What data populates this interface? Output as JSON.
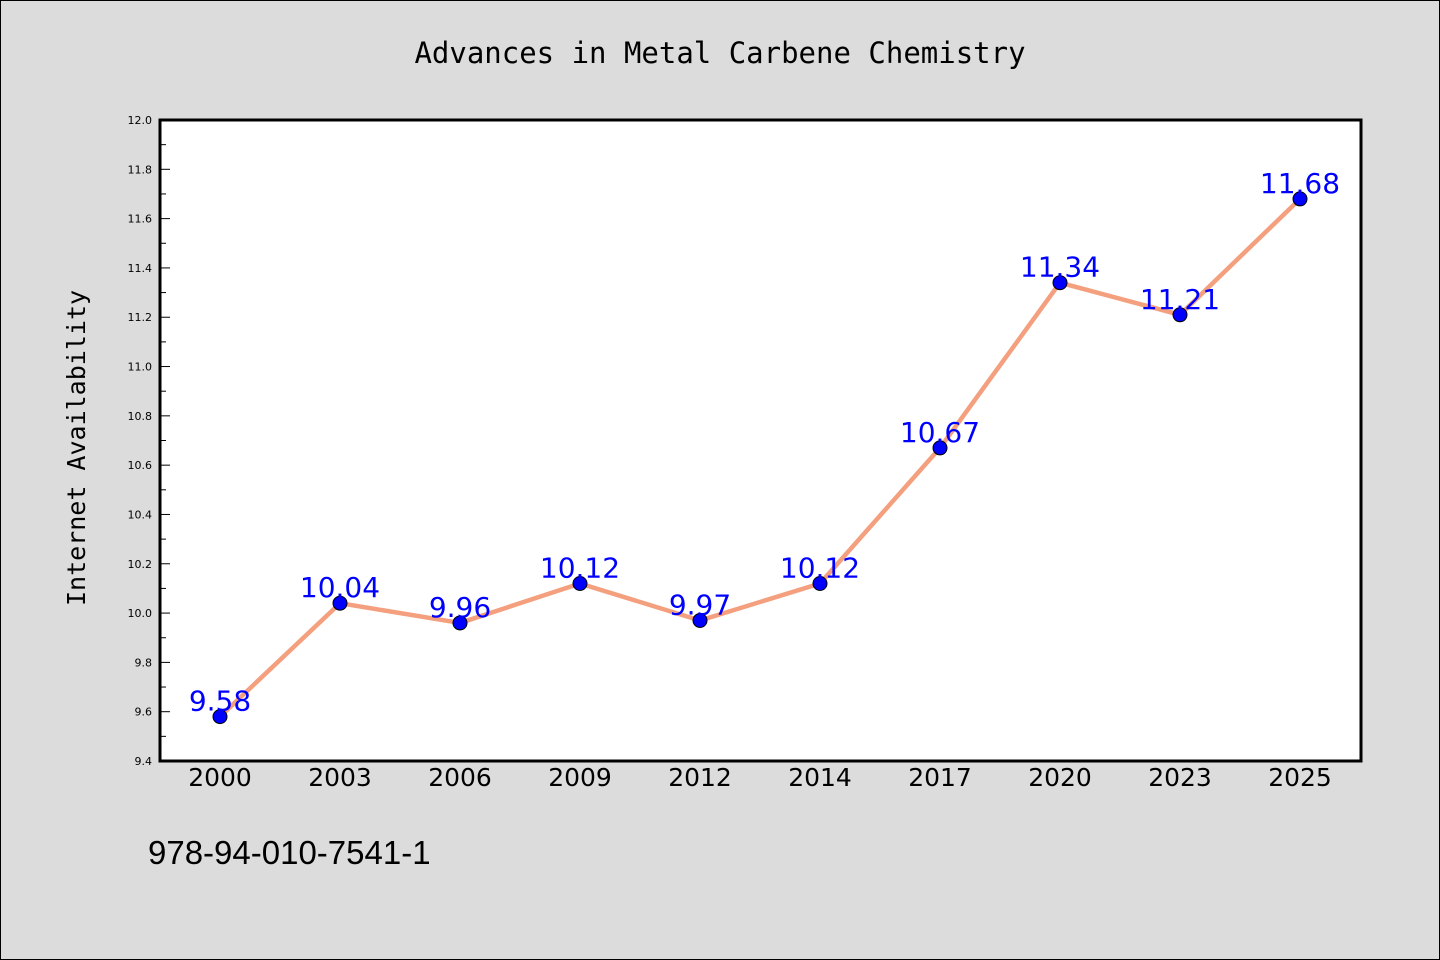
{
  "chart_data": {
    "type": "line",
    "title": "Advances in Metal Carbene Chemistry",
    "xlabel": "",
    "ylabel": "Internet Availability",
    "categories": [
      "2000",
      "2003",
      "2006",
      "2009",
      "2012",
      "2014",
      "2017",
      "2020",
      "2023",
      "2025"
    ],
    "series": [
      {
        "values": [
          9.58,
          10.04,
          9.96,
          10.12,
          9.97,
          10.12,
          10.67,
          11.34,
          11.21,
          11.68
        ],
        "data_labels": [
          "9.58",
          "10.04",
          "9.96",
          "10.12",
          "9.97",
          "10.12",
          "10.67",
          "11.34",
          "11.21",
          "11.68"
        ],
        "line_color": "#f4a07f",
        "marker_color": "#0000ff"
      }
    ],
    "ylim": [
      9.4,
      12.0
    ],
    "yticks": [
      "9.4",
      "9.6",
      "9.8",
      "10.0",
      "10.2",
      "10.4",
      "10.6",
      "10.8",
      "11.0",
      "11.2",
      "11.4",
      "11.6",
      "11.8",
      "12.0"
    ],
    "grid": false,
    "legend": "none"
  },
  "footer_text": "978-94-010-7541-1",
  "colors": {
    "background": "#dcdcdc",
    "plot_background": "#ffffff",
    "label_color": "#0000ff"
  }
}
